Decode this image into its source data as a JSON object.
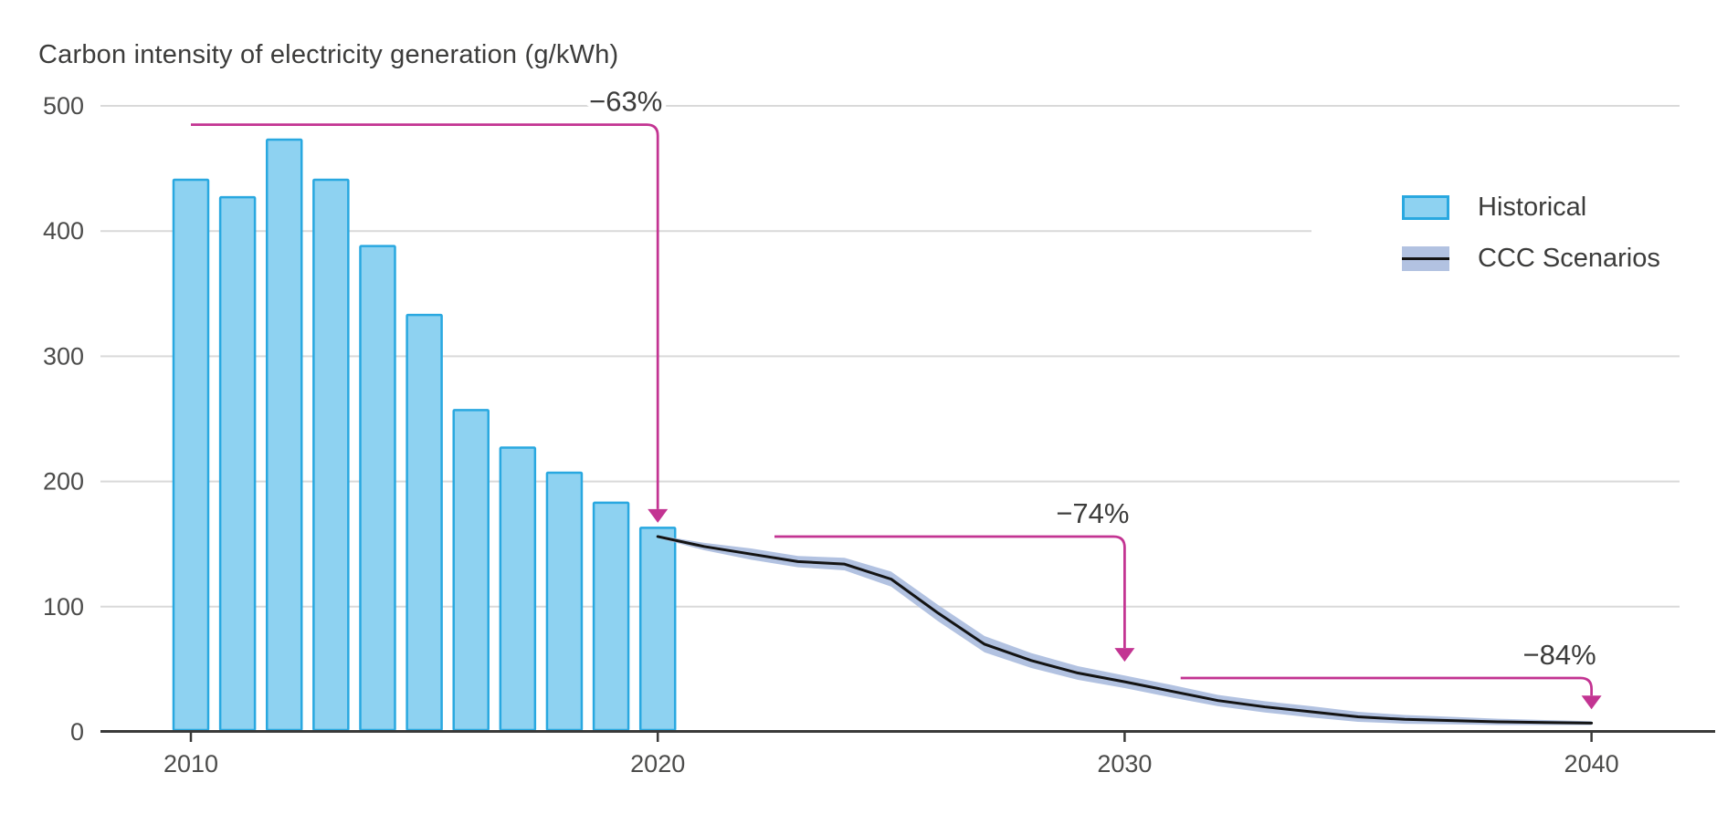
{
  "title": "Carbon intensity of electricity generation (g/kWh)",
  "legend": {
    "items": [
      {
        "label": "Historical",
        "swatch": "historical-bar-swatch"
      },
      {
        "label": "CCC Scenarios",
        "swatch": "ccc-scenarios-band-swatch"
      }
    ]
  },
  "colors": {
    "bar_fill": "#8ed2f1",
    "bar_border": "#29a8e0",
    "band": "#b2c2e1",
    "line": "#141414",
    "annotation_pink": "#c33492",
    "gridline": "#d9d9d9",
    "axis": "#3a3a39",
    "text": "#3c3c3b",
    "tick_text": "#4c4c4b"
  },
  "chart_data": {
    "type": "combo-bar-line-band",
    "title": "Carbon intensity of electricity generation (g/kWh)",
    "xlabel": "",
    "ylabel": "g/kWh",
    "xlim": [
      2008,
      2042.7
    ],
    "ylim": [
      0,
      500
    ],
    "x_ticks": [
      2010,
      2020,
      2030,
      2040
    ],
    "y_ticks": [
      0,
      100,
      200,
      300,
      400,
      500
    ],
    "grid": "horizontal",
    "legend_position": "upper-right",
    "series": [
      {
        "name": "Historical",
        "type": "bar",
        "years": [
          2010,
          2011,
          2012,
          2013,
          2014,
          2015,
          2016,
          2017,
          2018,
          2019,
          2020
        ],
        "values": [
          441,
          427,
          473,
          441,
          388,
          333,
          257,
          227,
          207,
          183,
          163
        ]
      },
      {
        "name": "CCC Scenarios",
        "type": "line-with-band",
        "years": [
          2020,
          2021,
          2022,
          2023,
          2024,
          2025,
          2026,
          2027,
          2028,
          2029,
          2030,
          2031,
          2032,
          2033,
          2034,
          2035,
          2036,
          2037,
          2038,
          2039,
          2040
        ],
        "values": [
          156,
          148,
          142,
          136,
          134,
          122,
          95,
          70,
          57,
          47,
          40,
          32.5,
          25,
          20,
          16,
          12,
          10,
          9,
          8,
          7.5,
          7
        ],
        "band_half_width": [
          1,
          3,
          4.5,
          4.5,
          5,
          6,
          6.5,
          6.5,
          6,
          5.5,
          5,
          5,
          4.5,
          4.5,
          4.5,
          4,
          3.5,
          3,
          2.5,
          2,
          1.5
        ]
      }
    ],
    "annotations": [
      {
        "label": "−63%",
        "from_year": 2010,
        "to_year": 2020,
        "level": 485,
        "arrow_tip_value": 167
      },
      {
        "label": "−74%",
        "from_year": 2022.5,
        "to_year": 2030,
        "level": 156,
        "arrow_tip_value": 56
      },
      {
        "label": "−84%",
        "from_year": 2031.2,
        "to_year": 2040,
        "level": 43,
        "arrow_tip_value": 18
      }
    ]
  }
}
